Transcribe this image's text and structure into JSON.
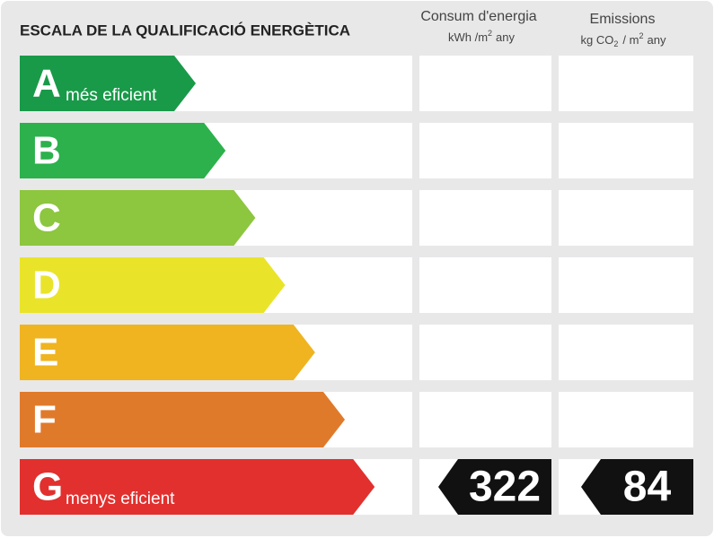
{
  "title": "ESCALA DE LA QUALIFICACIÓ ENERGÈTICA",
  "columns": {
    "consumption": {
      "title": "Consum d'energia",
      "unit": {
        "a": "kWh /m",
        "sup": "2",
        "b": "any"
      }
    },
    "emissions": {
      "title": "Emissions",
      "unit": {
        "a": "kg CO",
        "sub": "2",
        "b": "/ m",
        "sup": "2",
        "c": "any"
      }
    }
  },
  "rows": [
    {
      "letter": "A",
      "label": "més eficient",
      "color": "#199a49"
    },
    {
      "letter": "B",
      "color": "#2cb14c"
    },
    {
      "letter": "C",
      "color": "#8dc63f"
    },
    {
      "letter": "D",
      "color": "#e9e42a"
    },
    {
      "letter": "E",
      "color": "#efb420"
    },
    {
      "letter": "F",
      "color": "#e07a2b"
    },
    {
      "letter": "G",
      "label": "menys eficient",
      "color": "#e2302e"
    }
  ],
  "rating": {
    "row": 6,
    "consumption": 322,
    "emissions": 84
  }
}
